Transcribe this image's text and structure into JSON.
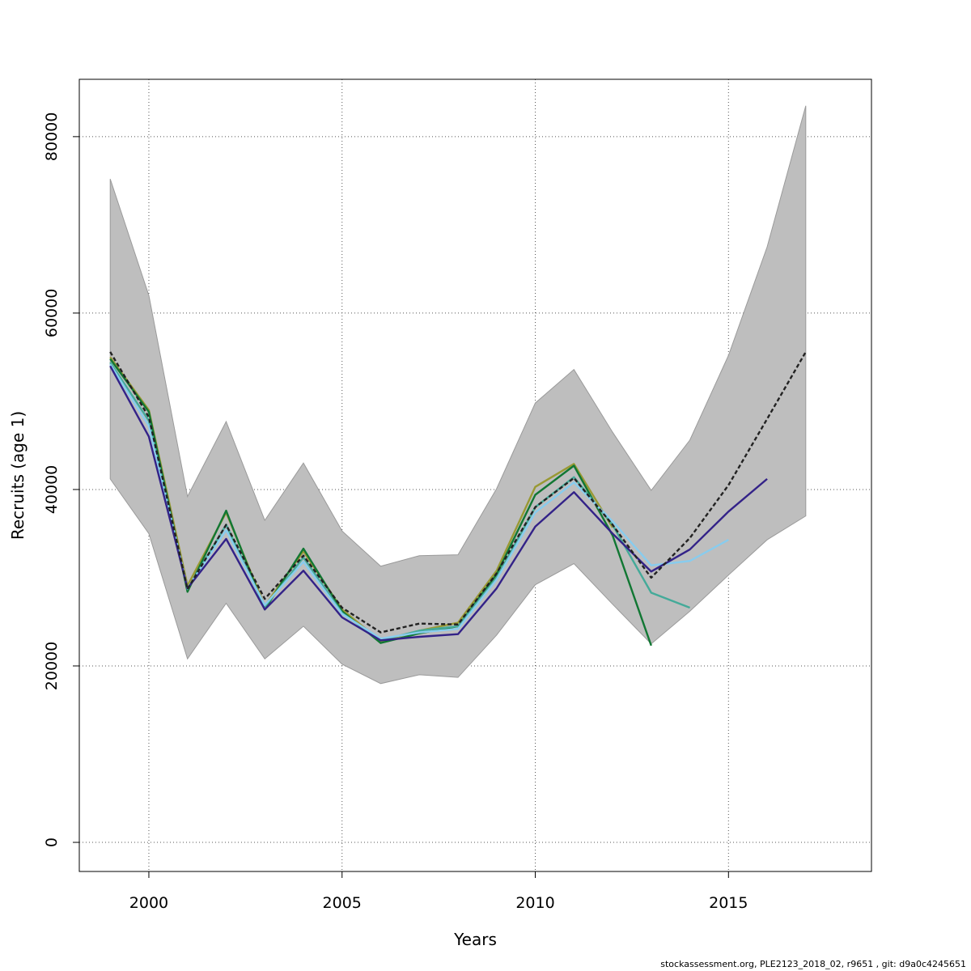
{
  "chart_data": {
    "type": "line",
    "xlabel": "Years",
    "ylabel": "Recruits (age 1)",
    "xlim": [
      1998.2,
      2018.7
    ],
    "ylim": [
      -3300,
      86500
    ],
    "x_ticks": [
      2000,
      2005,
      2010,
      2015
    ],
    "y_ticks": [
      0,
      20000,
      40000,
      60000,
      80000
    ],
    "grid": true,
    "band": {
      "x": [
        1999,
        2000,
        2001,
        2002,
        2003,
        2004,
        2005,
        2006,
        2007,
        2008,
        2009,
        2010,
        2011,
        2012,
        2013,
        2014,
        2015,
        2016,
        2017
      ],
      "upper": [
        75200,
        62000,
        39200,
        47700,
        36500,
        43000,
        35300,
        31300,
        32500,
        32600,
        40100,
        49800,
        53600,
        46500,
        39900,
        45600,
        55200,
        67500,
        83500
      ],
      "lower": [
        41200,
        35000,
        20800,
        27100,
        20800,
        24500,
        20200,
        18000,
        19000,
        18700,
        23500,
        29200,
        31600,
        27000,
        22500,
        26200,
        30300,
        34300,
        37000
      ],
      "color": "#bebebe"
    },
    "series": [
      {
        "color": "#222222",
        "dashed": true,
        "x": [
          1999,
          2000,
          2001,
          2002,
          2003,
          2004,
          2005,
          2006,
          2007,
          2008,
          2009,
          2010,
          2011,
          2012,
          2013,
          2014,
          2015,
          2016,
          2017
        ],
        "values": [
          55600,
          48200,
          28700,
          36000,
          27600,
          32500,
          26600,
          23800,
          24800,
          24700,
          30500,
          38000,
          41300,
          36000,
          30000,
          34500,
          40500,
          48000,
          55600
        ]
      },
      {
        "color": "#332288",
        "dashed": false,
        "x": [
          1999,
          2000,
          2001,
          2002,
          2003,
          2004,
          2005,
          2006,
          2007,
          2008,
          2009,
          2010,
          2011,
          2012,
          2013,
          2014,
          2015,
          2016
        ],
        "values": [
          54000,
          46000,
          28800,
          34400,
          26400,
          30800,
          25500,
          22900,
          23300,
          23600,
          28800,
          35800,
          39700,
          35000,
          30700,
          33200,
          37500,
          41200
        ]
      },
      {
        "color": "#88ccee",
        "dashed": false,
        "x": [
          1999,
          2000,
          2001,
          2002,
          2003,
          2004,
          2005,
          2006,
          2007,
          2008,
          2009,
          2010,
          2011,
          2012,
          2013,
          2014,
          2015
        ],
        "values": [
          54200,
          47200,
          28800,
          35400,
          26900,
          31800,
          25900,
          23100,
          23800,
          24200,
          29800,
          37400,
          40800,
          36400,
          31400,
          31900,
          34300
        ]
      },
      {
        "color": "#44aa99",
        "dashed": false,
        "x": [
          1999,
          2000,
          2001,
          2002,
          2003,
          2004,
          2005,
          2006,
          2007,
          2008,
          2009,
          2010,
          2011,
          2012,
          2013,
          2014
        ],
        "values": [
          54400,
          47800,
          28700,
          36000,
          26700,
          32300,
          26000,
          22900,
          24000,
          24500,
          30000,
          38000,
          41400,
          36000,
          28300,
          26600
        ]
      },
      {
        "color": "#117733",
        "dashed": false,
        "x": [
          1999,
          2000,
          2001,
          2002,
          2003,
          2004,
          2005,
          2006,
          2007,
          2008,
          2009,
          2010,
          2011,
          2012,
          2013
        ],
        "values": [
          54800,
          48800,
          28400,
          37600,
          26400,
          33300,
          26200,
          22600,
          23700,
          24500,
          30400,
          39400,
          42700,
          34800,
          22300
        ]
      },
      {
        "color": "#999933",
        "dashed": false,
        "x": [
          1999,
          2000,
          2001,
          2002,
          2003,
          2004,
          2005,
          2006,
          2007,
          2008,
          2009,
          2010,
          2011,
          2012
        ],
        "values": [
          55000,
          49000,
          29100,
          37400,
          26800,
          33000,
          26400,
          22800,
          24000,
          24900,
          30800,
          40300,
          42900,
          35700
        ]
      }
    ]
  },
  "footer_text": "stockassessment.org, PLE2123_2018_02, r9651 , git: d9a0c4245651"
}
